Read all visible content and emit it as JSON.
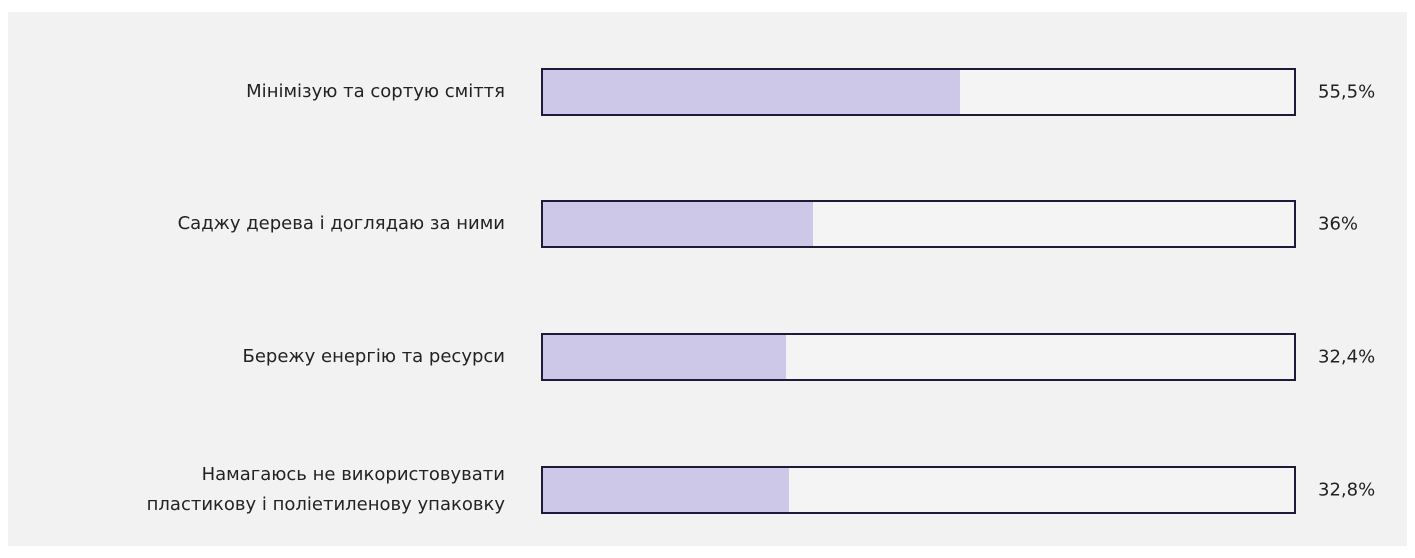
{
  "chart_data": {
    "type": "bar",
    "orientation": "horizontal",
    "categories": [
      "Мінімізую та сортую сміття",
      "Саджу дерева і доглядаю за ними",
      "Бережу енергію та ресурси",
      "Намагаюсь не використовувати\nпластикову і поліетиленову упаковку"
    ],
    "values": [
      55.5,
      36,
      32.4,
      32.8
    ],
    "value_labels": [
      "55,5%",
      "36%",
      "32,4%",
      "32,8%"
    ],
    "color": "#cdc8e8",
    "xlim": [
      0,
      100
    ]
  }
}
